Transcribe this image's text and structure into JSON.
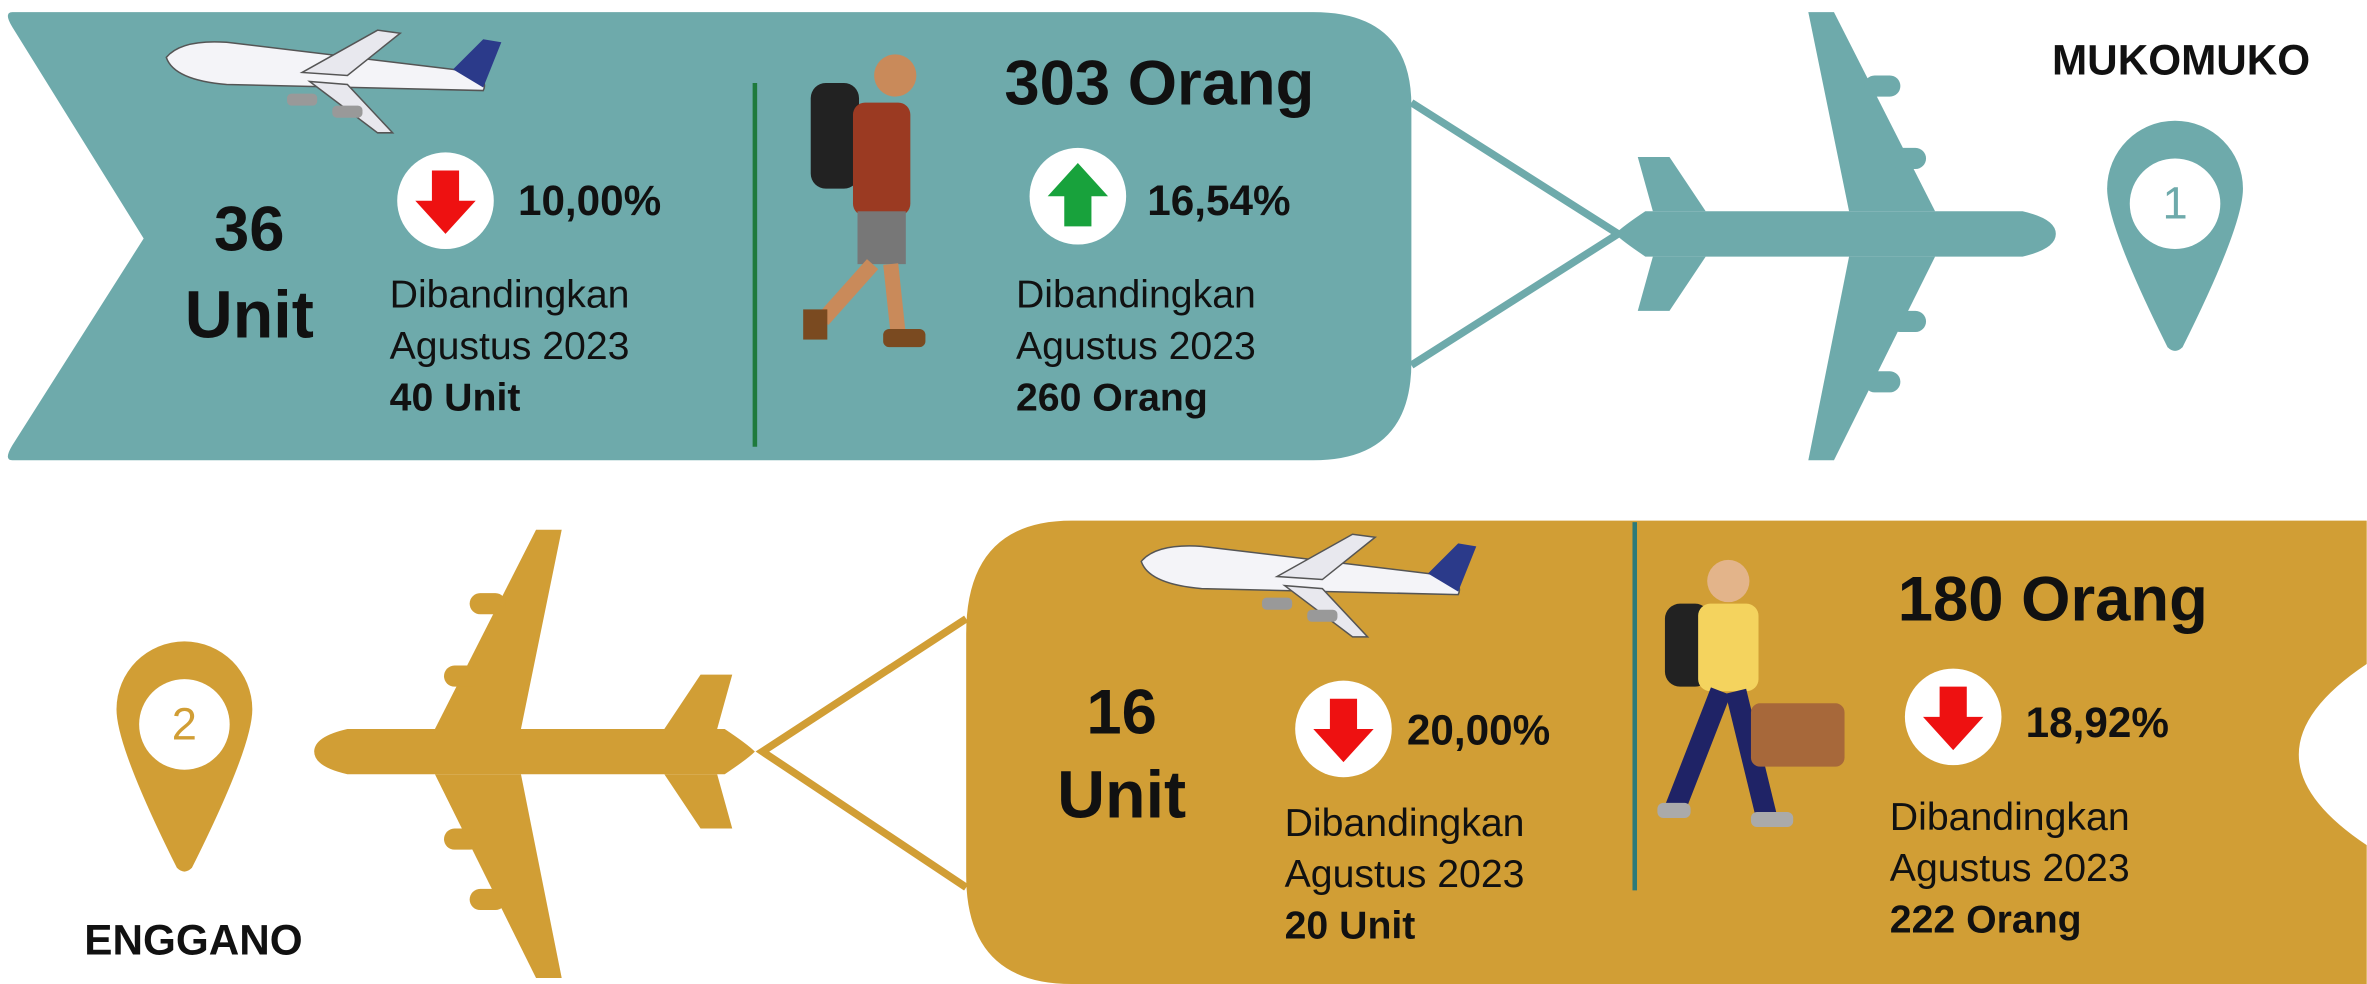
{
  "sections": [
    {
      "location": "MUKOMUKO",
      "marker": "1",
      "aircraft": {
        "value": "36",
        "unit": "Unit",
        "change": "10,00%",
        "comparison": "Dibandingkan",
        "period": "Agustus 2023",
        "previous": "40 Unit"
      },
      "passengers": {
        "total": "303 Orang",
        "change": "16,54%",
        "comparison": "Dibandingkan",
        "period": "Agustus 2023",
        "previous": "260 Orang"
      }
    },
    {
      "location": "ENGGANO",
      "marker": "2",
      "aircraft": {
        "value": "16",
        "unit": "Unit",
        "change": "20,00%",
        "comparison": "Dibandingkan",
        "period": "Agustus 2023",
        "previous": "20 Unit"
      },
      "passengers": {
        "total": "180 Orang",
        "change": "18,92%",
        "comparison": "Dibandingkan",
        "period": "Agustus 2023",
        "previous": "222 Orang"
      }
    }
  ]
}
